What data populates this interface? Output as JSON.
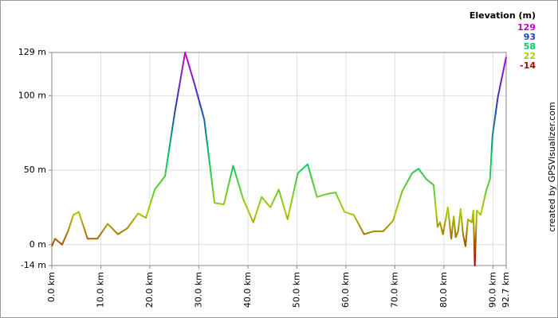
{
  "chart_data": {
    "type": "line",
    "legend_title": "Elevation (m)",
    "color_scale": [
      {
        "value": 129,
        "color": "#cc00cc"
      },
      {
        "value": 93,
        "color": "#1f3fbf"
      },
      {
        "value": 58,
        "color": "#00cc66"
      },
      {
        "value": 22,
        "color": "#aacc00"
      },
      {
        "value": -14,
        "color": "#aa0000"
      }
    ],
    "attribution": "created by GPSVisualizer.com",
    "x": [
      0,
      0.65,
      2.1,
      3.3,
      4.4,
      5.5,
      7.3,
      9.3,
      11.4,
      13.5,
      15.4,
      17.6,
      19.2,
      21,
      23.1,
      25.1,
      27.2,
      29.1,
      31.1,
      33.2,
      35.1,
      37,
      39,
      41.1,
      42.8,
      44.6,
      46.3,
      48.1,
      50.2,
      52.2,
      54.1,
      56.1,
      57.9,
      59.7,
      61.6,
      63.7,
      65.7,
      67.6,
      69.6,
      71.5,
      73.5,
      74.8,
      76.4,
      77.9,
      78.7,
      79.2,
      79.8,
      80.8,
      81.5,
      82,
      82.4,
      82.9,
      83.4,
      83.9,
      84.4,
      84.9,
      85.7,
      86,
      86.3,
      86.7,
      87.5,
      88.6,
      89.4,
      89.9,
      91,
      92.7
    ],
    "values": [
      -1,
      4,
      0,
      9,
      20,
      22,
      4,
      4,
      14,
      7,
      11,
      21,
      18,
      37,
      46,
      89,
      129,
      108,
      84,
      28,
      27,
      53,
      31,
      15,
      32,
      25,
      37,
      17,
      48,
      54,
      32,
      34,
      35,
      22,
      20,
      7,
      9,
      9,
      16,
      36,
      48,
      51,
      44,
      40,
      12,
      15,
      7,
      25,
      4,
      19,
      5,
      9,
      24,
      7,
      -1,
      17,
      15,
      23,
      -14,
      23,
      20,
      36,
      44,
      73,
      99,
      126
    ],
    "xlim": [
      0,
      92.7
    ],
    "ylim": [
      -14,
      129
    ],
    "xticks": [
      {
        "value": 0,
        "label": "0.0 km"
      },
      {
        "value": 10,
        "label": "10.0 km"
      },
      {
        "value": 20,
        "label": "20.0 km"
      },
      {
        "value": 30,
        "label": "30.0 km"
      },
      {
        "value": 40,
        "label": "40.0 km"
      },
      {
        "value": 50,
        "label": "50.0 km"
      },
      {
        "value": 60,
        "label": "60.0 km"
      },
      {
        "value": 70,
        "label": "70.0 km"
      },
      {
        "value": 80,
        "label": "80.0 km"
      },
      {
        "value": 90,
        "label": "90.0 km"
      },
      {
        "value": 92.7,
        "label": "92.7 km"
      }
    ],
    "yticks": [
      {
        "value": -14,
        "label": "-14 m"
      },
      {
        "value": 0,
        "label": "0 m"
      },
      {
        "value": 50,
        "label": "50 m"
      },
      {
        "value": 100,
        "label": "100 m"
      },
      {
        "value": 129,
        "label": "129 m"
      }
    ],
    "grid": true
  }
}
